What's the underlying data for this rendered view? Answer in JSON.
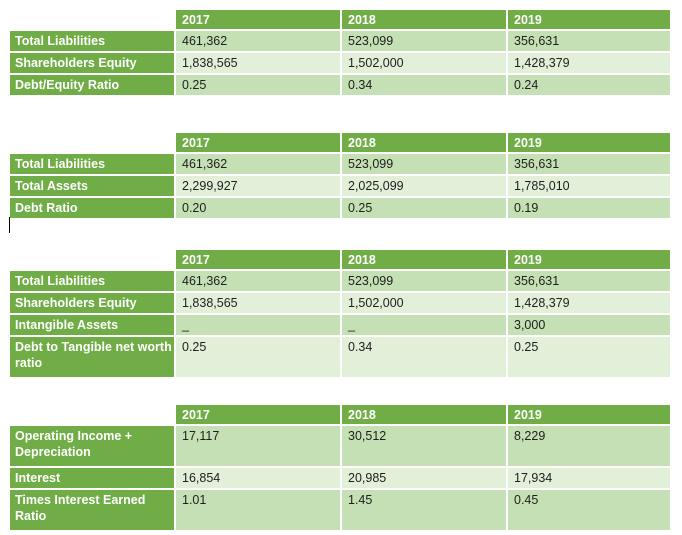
{
  "years": [
    "2017",
    "2018",
    "2019"
  ],
  "tables": [
    {
      "rows": [
        {
          "label": "Total Liabilities",
          "values": [
            "461,362",
            "523,099",
            "356,631"
          ]
        },
        {
          "label": "Shareholders Equity",
          "values": [
            "1,838,565",
            "1,502,000",
            "1,428,379"
          ]
        },
        {
          "label": "Debt/Equity Ratio",
          "values": [
            "0.25",
            "0.34",
            "0.24"
          ]
        }
      ]
    },
    {
      "rows": [
        {
          "label": "Total Liabilities",
          "values": [
            "461,362",
            "523,099",
            "356,631"
          ]
        },
        {
          "label": "Total Assets",
          "values": [
            "2,299,927",
            "2,025,099",
            "1,785,010"
          ]
        },
        {
          "label": "Debt Ratio",
          "values": [
            "0.20",
            "0.25",
            "0.19"
          ]
        }
      ]
    },
    {
      "rows": [
        {
          "label": "Total Liabilities",
          "values": [
            "461,362",
            "523,099",
            "356,631"
          ]
        },
        {
          "label": "Shareholders Equity",
          "values": [
            "1,838,565",
            "1,502,000",
            "1,428,379"
          ]
        },
        {
          "label": "Intangible Assets",
          "values": [
            "_",
            "_",
            "3,000"
          ]
        },
        {
          "label": "Debt to Tangible net worth ratio",
          "values": [
            "0.25",
            "0.34",
            "0.25"
          ]
        }
      ]
    },
    {
      "rows": [
        {
          "label": "Operating Income + Depreciation",
          "values": [
            "17,117",
            "30,512",
            "8,229"
          ]
        },
        {
          "label": "Interest",
          "values": [
            "16,854",
            "20,985",
            "17,934"
          ]
        },
        {
          "label": "Times Interest Earned Ratio",
          "values": [
            "1.01",
            "1.45",
            "0.45"
          ]
        }
      ]
    }
  ]
}
